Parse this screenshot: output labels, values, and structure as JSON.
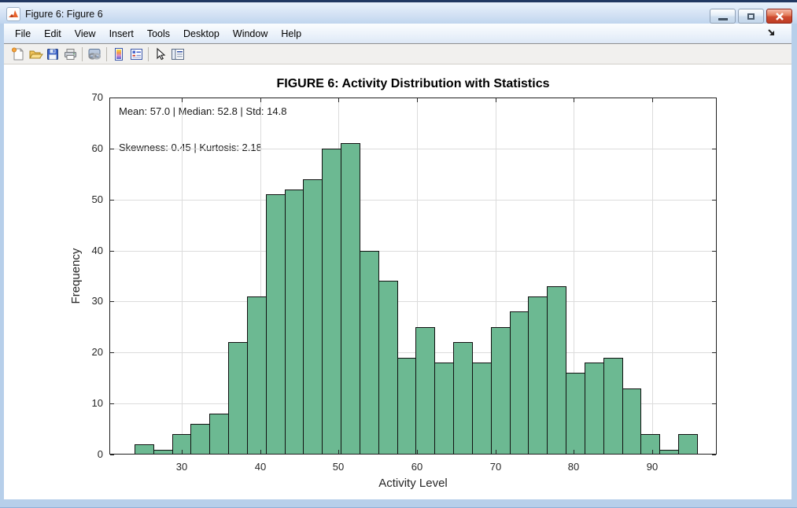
{
  "window": {
    "title": "Figure 6: Figure 6"
  },
  "window_controls": [
    "minimize-button",
    "restore-button",
    "close-button"
  ],
  "menu": {
    "items": [
      "File",
      "Edit",
      "View",
      "Insert",
      "Tools",
      "Desktop",
      "Window",
      "Help"
    ]
  },
  "toolbar": {
    "icons": [
      "new-figure-icon",
      "open-file-icon",
      "save-figure-icon",
      "print-figure-icon",
      "link-plot-icon",
      "insert-colorbar-icon",
      "insert-legend-icon",
      "edit-plot-icon",
      "property-inspector-icon"
    ]
  },
  "chart_data": {
    "type": "bar",
    "subtype": "histogram",
    "title": "FIGURE 6: Activity Distribution with Statistics",
    "xlabel": "Activity Level",
    "ylabel": "Frequency",
    "annotation_line1": "Mean: 57.0 | Median: 52.8 | Std: 14.8",
    "annotation_line2": "Skewness: 0.45 | Kurtosis: 2.18",
    "bin_start": 23.98,
    "bin_width": 2.391,
    "values": [
      2,
      1,
      4,
      6,
      8,
      22,
      31,
      51,
      52,
      54,
      60,
      61,
      40,
      34,
      19,
      25,
      18,
      22,
      18,
      25,
      28,
      31,
      33,
      16,
      18,
      19,
      13,
      4,
      1,
      4
    ],
    "xticks": [
      30,
      40,
      50,
      60,
      70,
      80,
      90
    ],
    "yticks": [
      0,
      10,
      20,
      30,
      40,
      50,
      60,
      70
    ],
    "xlim": [
      20.77,
      98.23
    ],
    "ylim": [
      0,
      70
    ],
    "grid": true,
    "legend_position": "none",
    "bar_color": "#6cb992",
    "bar_edge_color": "#111111"
  }
}
